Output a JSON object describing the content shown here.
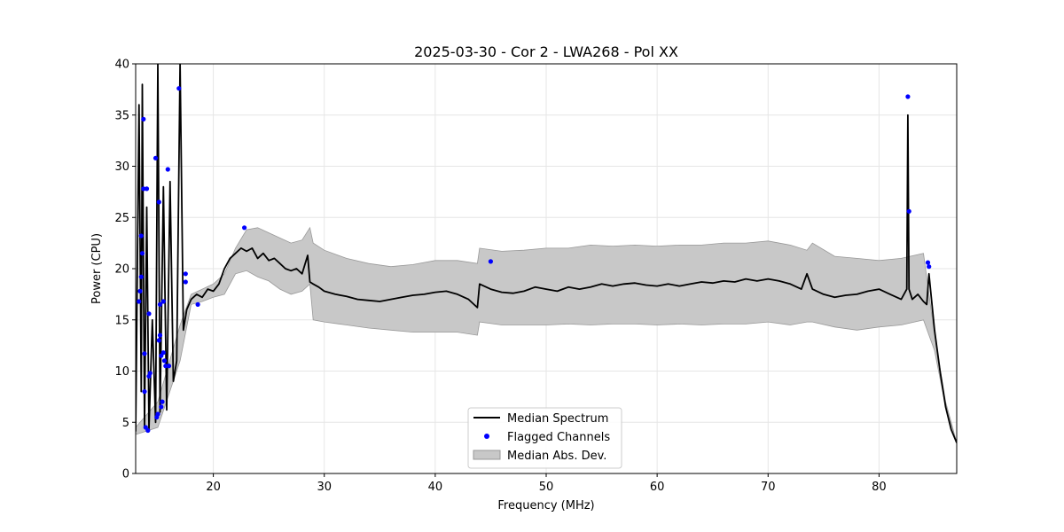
{
  "chart_data": {
    "type": "line",
    "title": "2025-03-30 - Cor 2 - LWA268 - Pol XX",
    "xlabel": "Frequency (MHz)",
    "ylabel": "Power (CPU)",
    "xlim": [
      13,
      87
    ],
    "ylim": [
      0,
      40
    ],
    "xticks": [
      20,
      30,
      40,
      50,
      60,
      70,
      80
    ],
    "yticks": [
      0,
      5,
      10,
      15,
      20,
      25,
      30,
      35,
      40
    ],
    "grid": true,
    "legend_position": "bottom-center",
    "legend": [
      "Median Spectrum",
      "Flagged Channels",
      "Median Abs. Dev."
    ],
    "colors": {
      "line": "#000000",
      "points": "#0000ff",
      "band": "#c8c8c8",
      "band_edge": "#999999",
      "grid": "#e6e6e6"
    },
    "series": [
      {
        "name": "Median Spectrum",
        "x": [
          13.0,
          13.3,
          13.5,
          13.6,
          13.8,
          14.0,
          14.2,
          14.5,
          14.8,
          15.0,
          15.2,
          15.5,
          15.8,
          16.1,
          16.4,
          16.7,
          17.0,
          17.3,
          17.6,
          18.0,
          18.5,
          19.0,
          19.5,
          20.0,
          20.5,
          21.0,
          21.5,
          22.0,
          22.5,
          23.0,
          23.5,
          24.0,
          24.5,
          25.0,
          25.5,
          26.0,
          26.5,
          27.0,
          27.5,
          28.0,
          28.5,
          28.7,
          29.0,
          29.5,
          30.0,
          31.0,
          32.0,
          33.0,
          34.0,
          35.0,
          36.0,
          37.0,
          38.0,
          39.0,
          40.0,
          41.0,
          42.0,
          43.0,
          43.8,
          44.0,
          45.0,
          46.0,
          47.0,
          48.0,
          49.0,
          50.0,
          51.0,
          52.0,
          53.0,
          54.0,
          55.0,
          56.0,
          57.0,
          58.0,
          59.0,
          60.0,
          61.0,
          62.0,
          63.0,
          64.0,
          65.0,
          66.0,
          67.0,
          68.0,
          69.0,
          70.0,
          71.0,
          72.0,
          73.0,
          73.5,
          74.0,
          75.0,
          76.0,
          77.0,
          78.0,
          79.0,
          80.0,
          81.0,
          82.0,
          82.5,
          82.6,
          82.7,
          83.0,
          83.5,
          84.0,
          84.3,
          84.5,
          85.0,
          85.5,
          86.0,
          86.5,
          87.0
        ],
        "values": [
          4.1,
          36.0,
          8.0,
          38.0,
          4.5,
          26.0,
          4.3,
          15.0,
          5.0,
          40.0,
          6.0,
          28.0,
          6.2,
          28.5,
          9.0,
          11.0,
          40.0,
          14.0,
          16.0,
          17.0,
          17.5,
          17.2,
          18.0,
          17.8,
          18.5,
          20.0,
          21.0,
          21.5,
          22.0,
          21.7,
          22.0,
          21.0,
          21.5,
          20.8,
          21.0,
          20.5,
          20.0,
          19.8,
          20.0,
          19.5,
          21.3,
          18.7,
          18.5,
          18.2,
          17.8,
          17.5,
          17.3,
          17.0,
          16.9,
          16.8,
          17.0,
          17.2,
          17.4,
          17.5,
          17.7,
          17.8,
          17.5,
          17.0,
          16.2,
          18.5,
          18.0,
          17.7,
          17.6,
          17.8,
          18.2,
          18.0,
          17.8,
          18.2,
          18.0,
          18.2,
          18.5,
          18.3,
          18.5,
          18.6,
          18.4,
          18.3,
          18.5,
          18.3,
          18.5,
          18.7,
          18.6,
          18.8,
          18.7,
          19.0,
          18.8,
          19.0,
          18.8,
          18.5,
          18.0,
          19.5,
          18.0,
          17.5,
          17.2,
          17.4,
          17.5,
          17.8,
          18.0,
          17.5,
          17.0,
          18.0,
          35.0,
          18.0,
          17.0,
          17.5,
          16.8,
          16.5,
          19.5,
          14.0,
          10.0,
          6.5,
          4.3,
          3.0
        ]
      },
      {
        "name": "Median Abs. Dev.",
        "x": [
          13.0,
          15.0,
          17.0,
          18.0,
          19.0,
          20.0,
          21.0,
          22.0,
          23.0,
          24.0,
          25.0,
          26.0,
          27.0,
          28.0,
          28.7,
          29.0,
          30.0,
          32.0,
          34.0,
          36.0,
          38.0,
          40.0,
          42.0,
          43.8,
          44.0,
          46.0,
          48.0,
          50.0,
          52.0,
          54.0,
          56.0,
          58.0,
          60.0,
          62.0,
          64.0,
          66.0,
          68.0,
          70.0,
          72.0,
          73.5,
          74.0,
          76.0,
          78.0,
          80.0,
          82.0,
          84.0,
          85.0,
          86.0,
          87.0
        ],
        "upper": [
          4.5,
          7.0,
          14.5,
          17.5,
          18.0,
          18.5,
          19.5,
          22.0,
          23.8,
          24.0,
          23.5,
          23.0,
          22.5,
          22.8,
          24.0,
          22.5,
          21.8,
          21.0,
          20.5,
          20.2,
          20.4,
          20.8,
          20.8,
          20.5,
          22.0,
          21.7,
          21.8,
          22.0,
          22.0,
          22.3,
          22.2,
          22.3,
          22.2,
          22.3,
          22.3,
          22.5,
          22.5,
          22.7,
          22.3,
          21.8,
          22.5,
          21.2,
          21.0,
          20.8,
          21.0,
          21.5,
          13.5,
          7.0,
          3.0
        ],
        "lower": [
          3.8,
          4.5,
          11.0,
          16.5,
          16.8,
          17.2,
          17.5,
          19.5,
          19.8,
          19.2,
          18.8,
          18.0,
          17.5,
          17.8,
          18.5,
          15.0,
          14.8,
          14.5,
          14.2,
          14.0,
          13.8,
          13.8,
          13.8,
          13.5,
          14.8,
          14.5,
          14.5,
          14.5,
          14.6,
          14.5,
          14.6,
          14.6,
          14.5,
          14.6,
          14.5,
          14.6,
          14.6,
          14.8,
          14.5,
          14.8,
          14.8,
          14.3,
          14.0,
          14.3,
          14.5,
          15.0,
          12.0,
          6.5,
          3.0
        ]
      },
      {
        "name": "Flagged Channels",
        "x": [
          13.3,
          13.4,
          13.5,
          13.5,
          13.6,
          13.7,
          13.7,
          13.8,
          13.8,
          13.9,
          14.0,
          14.1,
          14.2,
          14.2,
          14.3,
          14.8,
          14.9,
          15.0,
          15.1,
          15.1,
          15.2,
          15.2,
          15.3,
          15.3,
          15.4,
          15.5,
          15.5,
          15.6,
          15.7,
          15.9,
          16.0,
          16.9,
          17.5,
          17.5,
          18.6,
          22.8,
          45.0,
          82.6,
          82.7,
          84.4,
          84.5
        ],
        "values": [
          16.8,
          17.8,
          19.2,
          23.2,
          21.5,
          34.6,
          27.8,
          8.0,
          11.7,
          4.5,
          27.8,
          4.2,
          9.5,
          15.6,
          9.8,
          30.8,
          5.5,
          5.8,
          13.0,
          26.5,
          13.5,
          16.5,
          11.5,
          6.5,
          7.0,
          16.8,
          11.8,
          11.0,
          10.5,
          29.7,
          10.5,
          37.6,
          19.5,
          18.7,
          16.5,
          24.0,
          20.7,
          36.8,
          25.6,
          20.6,
          20.2
        ]
      }
    ]
  }
}
